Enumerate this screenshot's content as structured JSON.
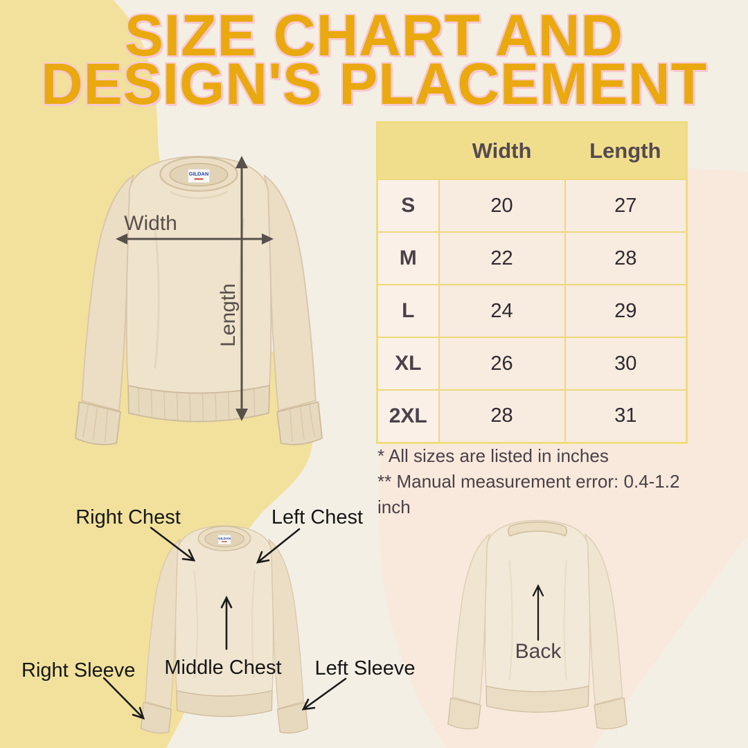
{
  "title": {
    "line1": "SIZE CHART AND",
    "line2": "DESIGN'S PLACEMENT"
  },
  "size_chart": {
    "type": "table",
    "columns": [
      "",
      "Width",
      "Length"
    ],
    "rows": [
      {
        "size": "S",
        "width": "20",
        "length": "27"
      },
      {
        "size": "M",
        "width": "22",
        "length": "28"
      },
      {
        "size": "L",
        "width": "24",
        "length": "29"
      },
      {
        "size": "XL",
        "width": "26",
        "length": "30"
      },
      {
        "size": "2XL",
        "width": "28",
        "length": "31"
      }
    ],
    "notes": [
      "* All sizes are listed in inches",
      "** Manual measurement error: 0.4-1.2 inch"
    ]
  },
  "measurements": {
    "width_label": "Width",
    "length_label": "Length"
  },
  "placements": {
    "right_chest": "Right Chest",
    "left_chest": "Left Chest",
    "middle_chest": "Middle Chest",
    "right_sleeve": "Right Sleeve",
    "left_sleeve": "Left Sleeve",
    "back": "Back"
  },
  "brand_tag": {
    "name": "GILDAN"
  },
  "colors": {
    "background": "#F4EFE5",
    "yellow_blob": "#F1E19C",
    "pink_blob": "#F8E9DC",
    "title_gold": "#E9A90F",
    "title_shadow_pink": "#F8C8CF",
    "table_header": "#F0DE8D",
    "table_border": "#EDD87A",
    "table_cell": "#F8EBDF",
    "dark_text": "#4A4148",
    "measure_arrow": "#57504B",
    "placement_arrow": "#1B1B1B",
    "sweatshirt_sand": "#EFE3CC",
    "tag_blue": "#1D3FAA",
    "tag_red": "#C0392B"
  }
}
